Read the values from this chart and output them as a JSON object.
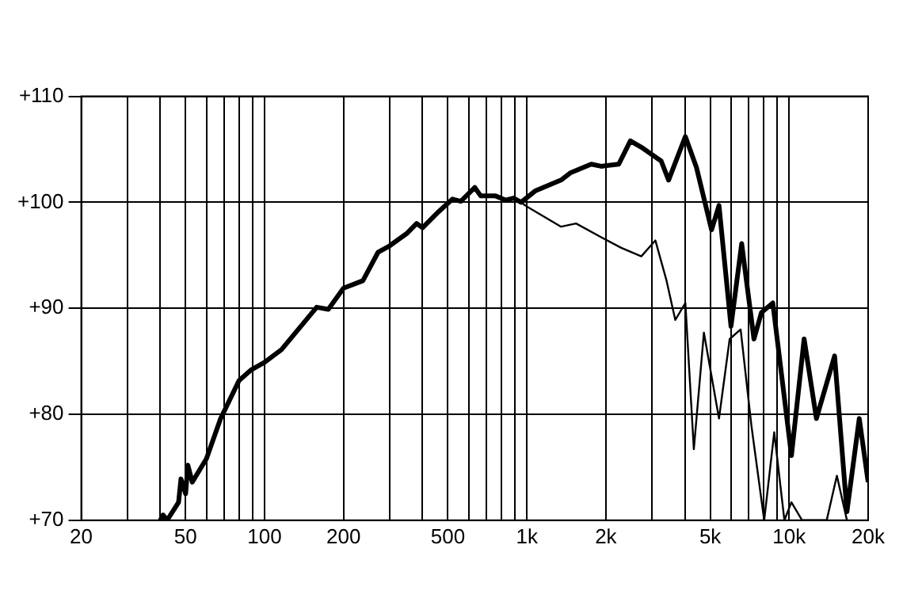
{
  "chart_data": {
    "type": "line",
    "log": "x",
    "grid": true,
    "marker": "none",
    "line_style": "solid",
    "xlim": [
      20,
      20000
    ],
    "ylim": [
      70,
      110
    ],
    "xticks": [
      20,
      {
        "value": 30,
        "label": null
      },
      {
        "value": 40,
        "label": null
      },
      50,
      {
        "value": 60,
        "label": null
      },
      {
        "value": 70,
        "label": null
      },
      {
        "value": 80,
        "label": null
      },
      {
        "value": 90,
        "label": null
      },
      100,
      200,
      {
        "value": 300,
        "label": null
      },
      {
        "value": 400,
        "label": null
      },
      500,
      {
        "value": 600,
        "label": null
      },
      {
        "value": 700,
        "label": null
      },
      {
        "value": 800,
        "label": null
      },
      {
        "value": 900,
        "label": null
      },
      {
        "value": 1000,
        "label": "1k"
      },
      {
        "value": 2000,
        "label": "2k"
      },
      {
        "value": 3000,
        "label": null
      },
      {
        "value": 4000,
        "label": null
      },
      {
        "value": 5000,
        "label": "5k"
      },
      {
        "value": 6000,
        "label": null
      },
      {
        "value": 7000,
        "label": null
      },
      {
        "value": 8000,
        "label": null
      },
      {
        "value": 9000,
        "label": null
      },
      {
        "value": 10000,
        "label": "10k"
      },
      {
        "value": 20000,
        "label": "20k"
      }
    ],
    "yticks": [
      {
        "value": 70,
        "label": "+70"
      },
      {
        "value": 80,
        "label": "+80"
      },
      {
        "value": 90,
        "label": "+90"
      },
      {
        "value": 100,
        "label": "+100"
      },
      {
        "value": 110,
        "label": "+110"
      }
    ],
    "series": [
      {
        "color": "#000000",
        "x": [
          40,
          41,
          42.5,
          47,
          48,
          50,
          51,
          53,
          60,
          68,
          80,
          89,
          100,
          116,
          158,
          175,
          200,
          237,
          271,
          300,
          350,
          380,
          400,
          460,
          520,
          560,
          633,
          667,
          760,
          830,
          890,
          950,
          1080,
          1350,
          1470,
          1760,
          1920,
          2240,
          2480,
          2730,
          3250,
          3470,
          4020,
          4430,
          5060,
          5400,
          6000,
          6590,
          7340,
          7840,
          8660,
          10200,
          11400,
          12700,
          14900,
          16600,
          18500,
          20000
        ],
        "values": [
          70,
          70.5,
          70,
          71.7,
          73.9,
          72.5,
          75.2,
          73.6,
          75.8,
          79.6,
          83.2,
          84.2,
          84.9,
          86.1,
          90.1,
          89.9,
          91.9,
          92.6,
          95.3,
          95.9,
          97.1,
          98,
          97.6,
          99.1,
          100.3,
          100.1,
          101.4,
          100.6,
          100.6,
          100.2,
          100.4,
          100,
          101.1,
          102.1,
          102.8,
          103.6,
          103.4,
          103.6,
          105.8,
          105.2,
          103.9,
          102.1,
          106.2,
          103.3,
          97.4,
          99.7,
          88.3,
          96.1,
          87.1,
          89.6,
          90.5,
          76.1,
          87.1,
          79.6,
          85.5,
          70.8,
          79.6,
          73.6
        ]
      },
      {
        "color": "#000000",
        "x": [
          900,
          1000,
          1350,
          1540,
          1920,
          2290,
          2730,
          3090,
          3400,
          3680,
          4020,
          4330,
          4730,
          5400,
          5930,
          6530,
          7180,
          8030,
          8770,
          9590,
          10200,
          11200,
          13900,
          15200,
          16600
        ],
        "values": [
          100.4,
          99.6,
          97.7,
          98,
          96.7,
          95.7,
          94.9,
          96.4,
          92.7,
          88.9,
          90.5,
          76.7,
          87.7,
          79.6,
          87.1,
          88,
          78.9,
          70,
          78.3,
          70,
          71.7,
          70,
          70,
          74.2,
          70
        ]
      }
    ]
  }
}
